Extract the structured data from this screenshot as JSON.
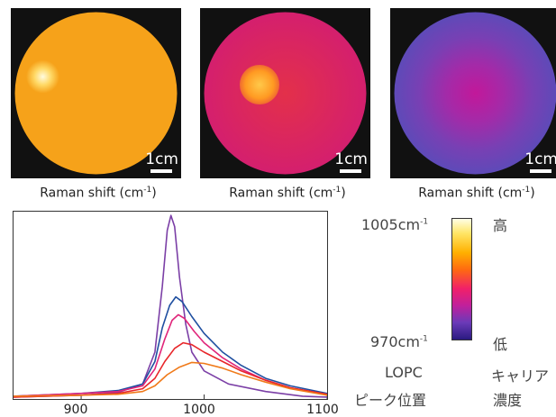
{
  "maps": [
    {
      "scale_label": "1cm",
      "caption": "Raman shift (cm",
      "caption_sup": "-1",
      "caption_end": ")"
    },
    {
      "scale_label": "1cm",
      "caption": "Raman shift (cm",
      "caption_sup": "-1",
      "caption_end": ")"
    },
    {
      "scale_label": "1cm",
      "caption": "Raman shift (cm",
      "caption_sup": "-1",
      "caption_end": ")"
    }
  ],
  "colorbar": {
    "top_value": "1005cm",
    "top_sup": "-1",
    "bottom_value": "970cm",
    "bottom_sup": "-1",
    "high_label": "高",
    "low_label": "低",
    "left_caption_1": "LOPC",
    "left_caption_2": "ピーク位置",
    "right_caption_1": "キャリア",
    "right_caption_2": "濃度"
  },
  "chart_data": {
    "type": "line",
    "xlim": [
      845,
      1100
    ],
    "ylim": [
      0,
      1.0
    ],
    "x_ticks": [
      "900",
      "1000",
      "1100"
    ],
    "x_tick_values": [
      900,
      1000,
      1100
    ],
    "grid": false,
    "series": [
      {
        "color": "#7b3fa6",
        "points": [
          [
            845,
            0.01
          ],
          [
            900,
            0.02
          ],
          [
            930,
            0.035
          ],
          [
            950,
            0.08
          ],
          [
            960,
            0.25
          ],
          [
            966,
            0.6
          ],
          [
            970,
            0.9
          ],
          [
            973,
            0.98
          ],
          [
            976,
            0.92
          ],
          [
            980,
            0.65
          ],
          [
            985,
            0.4
          ],
          [
            990,
            0.25
          ],
          [
            1000,
            0.15
          ],
          [
            1020,
            0.08
          ],
          [
            1050,
            0.04
          ],
          [
            1080,
            0.015
          ],
          [
            1100,
            0.01
          ]
        ]
      },
      {
        "color": "#1f4fa0",
        "points": [
          [
            845,
            0.015
          ],
          [
            900,
            0.03
          ],
          [
            930,
            0.045
          ],
          [
            950,
            0.08
          ],
          [
            960,
            0.2
          ],
          [
            966,
            0.38
          ],
          [
            972,
            0.5
          ],
          [
            977,
            0.545
          ],
          [
            982,
            0.52
          ],
          [
            990,
            0.44
          ],
          [
            1000,
            0.35
          ],
          [
            1015,
            0.25
          ],
          [
            1030,
            0.18
          ],
          [
            1050,
            0.11
          ],
          [
            1070,
            0.07
          ],
          [
            1100,
            0.03
          ]
        ]
      },
      {
        "color": "#e0257a",
        "points": [
          [
            845,
            0.015
          ],
          [
            900,
            0.03
          ],
          [
            930,
            0.04
          ],
          [
            950,
            0.07
          ],
          [
            960,
            0.16
          ],
          [
            968,
            0.32
          ],
          [
            974,
            0.42
          ],
          [
            979,
            0.45
          ],
          [
            984,
            0.43
          ],
          [
            992,
            0.36
          ],
          [
            1000,
            0.3
          ],
          [
            1015,
            0.22
          ],
          [
            1030,
            0.16
          ],
          [
            1050,
            0.1
          ],
          [
            1070,
            0.06
          ],
          [
            1100,
            0.025
          ]
        ]
      },
      {
        "color": "#e8262a",
        "points": [
          [
            845,
            0.01
          ],
          [
            900,
            0.02
          ],
          [
            930,
            0.03
          ],
          [
            950,
            0.055
          ],
          [
            960,
            0.11
          ],
          [
            968,
            0.2
          ],
          [
            976,
            0.27
          ],
          [
            983,
            0.3
          ],
          [
            990,
            0.29
          ],
          [
            1000,
            0.25
          ],
          [
            1015,
            0.2
          ],
          [
            1030,
            0.15
          ],
          [
            1050,
            0.1
          ],
          [
            1070,
            0.06
          ],
          [
            1100,
            0.025
          ]
        ]
      },
      {
        "color": "#f07a1a",
        "points": [
          [
            845,
            0.015
          ],
          [
            900,
            0.02
          ],
          [
            930,
            0.025
          ],
          [
            950,
            0.04
          ],
          [
            960,
            0.07
          ],
          [
            970,
            0.13
          ],
          [
            980,
            0.17
          ],
          [
            990,
            0.195
          ],
          [
            1000,
            0.19
          ],
          [
            1015,
            0.165
          ],
          [
            1030,
            0.13
          ],
          [
            1050,
            0.09
          ],
          [
            1070,
            0.055
          ],
          [
            1100,
            0.02
          ]
        ]
      }
    ]
  }
}
